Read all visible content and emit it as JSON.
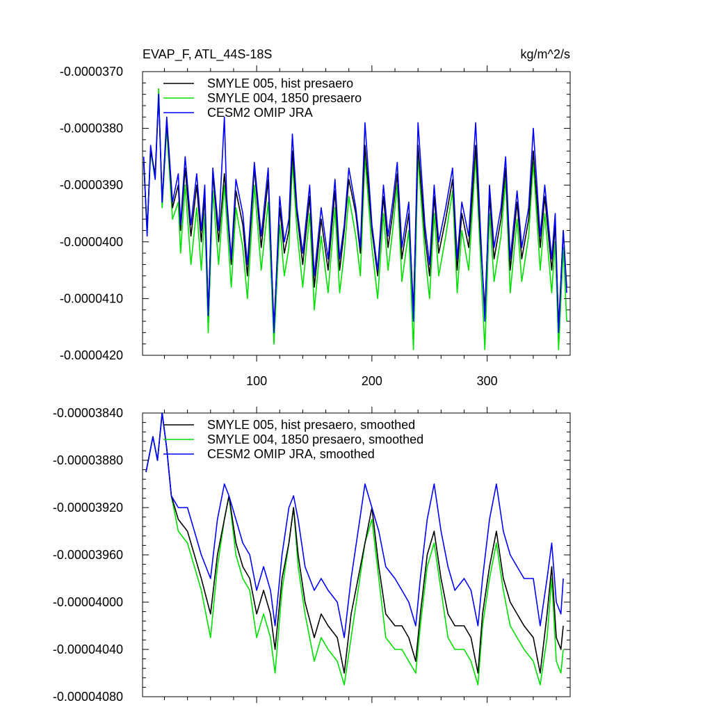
{
  "chart_data": [
    {
      "type": "line",
      "title": "EVAP_F, ATL_44S-18S",
      "units": "kg/m^2/s",
      "xlim": [
        1,
        372
      ],
      "ylim": [
        -4.2e-05,
        -3.7e-05
      ],
      "x_ticks": [
        100,
        200,
        300
      ],
      "x_tick_labels": [
        "100",
        "200",
        "300"
      ],
      "y_ticks": [
        -3.7e-05,
        -3.8e-05,
        -3.9e-05,
        -4e-05,
        -4.1e-05,
        -4.2e-05
      ],
      "y_tick_labels": [
        "-0.0000370",
        "-0.0000380",
        "-0.0000390",
        "-0.0000400",
        "-0.0000410",
        "-0.0000420"
      ],
      "legend_position": "top-left",
      "series": [
        {
          "name": "SMYLE 005, hist presaero",
          "color": "#000000",
          "x": [
            2,
            5,
            8,
            12,
            15,
            18,
            22,
            27,
            32,
            34,
            38,
            43,
            48,
            52,
            55,
            58,
            62,
            67,
            72,
            74,
            78,
            82,
            88,
            92,
            98,
            104,
            110,
            115,
            120,
            124,
            128,
            131,
            135,
            140,
            146,
            150,
            156,
            162,
            168,
            172,
            176,
            180,
            186,
            190,
            194,
            200,
            205,
            210,
            214,
            218,
            222,
            226,
            232,
            236,
            240,
            246,
            250,
            254,
            258,
            264,
            270,
            274,
            278,
            284,
            290,
            294,
            298,
            302,
            306,
            312,
            316,
            320,
            326,
            330,
            336,
            340,
            346,
            350,
            356,
            359,
            362,
            366,
            369
          ],
          "values": [
            -3.86e-05,
            -3.98e-05,
            -3.84e-05,
            -3.88e-05,
            -3.74e-05,
            -3.93e-05,
            -3.79e-05,
            -3.94e-05,
            -3.9e-05,
            -3.98e-05,
            -3.87e-05,
            -3.99e-05,
            -3.9e-05,
            -4e-05,
            -3.92e-05,
            -4.13e-05,
            -3.88e-05,
            -4e-05,
            -3.88e-05,
            -3.93e-05,
            -4.04e-05,
            -3.91e-05,
            -3.97e-05,
            -4.06e-05,
            -3.87e-05,
            -4.01e-05,
            -3.89e-05,
            -4.15e-05,
            -3.94e-05,
            -4.02e-05,
            -3.98e-05,
            -3.84e-05,
            -3.95e-05,
            -4.04e-05,
            -3.92e-05,
            -4.08e-05,
            -3.96e-05,
            -4.05e-05,
            -3.91e-05,
            -4.05e-05,
            -3.98e-05,
            -3.89e-05,
            -3.95e-05,
            -4.02e-05,
            -3.83e-05,
            -3.98e-05,
            -4.06e-05,
            -3.92e-05,
            -4.01e-05,
            -3.95e-05,
            -3.88e-05,
            -4.03e-05,
            -3.95e-05,
            -4.12e-05,
            -3.83e-05,
            -3.99e-05,
            -4.06e-05,
            -3.92e-05,
            -4.02e-05,
            -3.96e-05,
            -3.89e-05,
            -4.05e-05,
            -3.95e-05,
            -4.01e-05,
            -3.83e-05,
            -3.99e-05,
            -4.12e-05,
            -3.92e-05,
            -4.03e-05,
            -3.96e-05,
            -3.87e-05,
            -4.05e-05,
            -3.93e-05,
            -4.03e-05,
            -3.96e-05,
            -3.84e-05,
            -4.01e-05,
            -3.92e-05,
            -4.05e-05,
            -3.97e-05,
            -4.15e-05,
            -3.98e-05,
            -4.08e-05
          ]
        },
        {
          "name": "SMYLE 004, 1850 presaero",
          "color": "#00e000",
          "x": [
            2,
            5,
            8,
            12,
            15,
            18,
            22,
            27,
            32,
            34,
            38,
            43,
            48,
            52,
            55,
            58,
            62,
            67,
            72,
            74,
            78,
            82,
            88,
            92,
            98,
            104,
            110,
            115,
            120,
            124,
            128,
            131,
            135,
            140,
            146,
            150,
            156,
            162,
            168,
            172,
            176,
            180,
            186,
            190,
            194,
            200,
            205,
            210,
            214,
            218,
            222,
            226,
            232,
            236,
            240,
            246,
            250,
            254,
            258,
            264,
            270,
            274,
            278,
            284,
            290,
            294,
            298,
            302,
            306,
            312,
            316,
            320,
            326,
            330,
            336,
            340,
            346,
            350,
            356,
            359,
            362,
            366,
            369
          ],
          "values": [
            -3.86e-05,
            -3.98e-05,
            -3.84e-05,
            -3.89e-05,
            -3.73e-05,
            -3.94e-05,
            -3.8e-05,
            -3.96e-05,
            -3.93e-05,
            -4.02e-05,
            -3.9e-05,
            -4.04e-05,
            -3.94e-05,
            -4.05e-05,
            -3.95e-05,
            -4.16e-05,
            -3.91e-05,
            -4.04e-05,
            -3.9e-05,
            -3.96e-05,
            -4.08e-05,
            -3.94e-05,
            -4.01e-05,
            -4.1e-05,
            -3.9e-05,
            -4.05e-05,
            -3.93e-05,
            -4.18e-05,
            -3.97e-05,
            -4.06e-05,
            -4.01e-05,
            -3.86e-05,
            -3.98e-05,
            -4.08e-05,
            -3.95e-05,
            -4.12e-05,
            -3.99e-05,
            -4.09e-05,
            -3.94e-05,
            -4.09e-05,
            -4.02e-05,
            -3.92e-05,
            -3.99e-05,
            -4.06e-05,
            -3.85e-05,
            -4.01e-05,
            -4.1e-05,
            -3.95e-05,
            -4.05e-05,
            -3.98e-05,
            -3.9e-05,
            -4.07e-05,
            -3.98e-05,
            -4.19e-05,
            -3.85e-05,
            -4.02e-05,
            -4.1e-05,
            -3.95e-05,
            -4.06e-05,
            -3.99e-05,
            -3.91e-05,
            -4.09e-05,
            -3.98e-05,
            -4.05e-05,
            -3.85e-05,
            -4.02e-05,
            -4.19e-05,
            -3.95e-05,
            -4.07e-05,
            -3.99e-05,
            -3.89e-05,
            -4.09e-05,
            -3.96e-05,
            -4.07e-05,
            -3.99e-05,
            -3.86e-05,
            -4.05e-05,
            -3.95e-05,
            -4.09e-05,
            -4e-05,
            -4.19e-05,
            -4.01e-05,
            -4.14e-05
          ]
        },
        {
          "name": "CESM2 OMIP JRA",
          "color": "#0000ff",
          "x": [
            2,
            5,
            8,
            12,
            15,
            18,
            22,
            27,
            32,
            34,
            38,
            43,
            48,
            52,
            55,
            58,
            62,
            67,
            72,
            74,
            78,
            82,
            88,
            92,
            98,
            104,
            110,
            115,
            120,
            124,
            128,
            131,
            135,
            140,
            146,
            150,
            156,
            162,
            168,
            172,
            176,
            180,
            186,
            190,
            194,
            200,
            205,
            210,
            214,
            218,
            222,
            226,
            232,
            236,
            240,
            246,
            250,
            254,
            258,
            264,
            270,
            274,
            278,
            284,
            290,
            294,
            298,
            302,
            306,
            312,
            316,
            320,
            326,
            330,
            336,
            340,
            346,
            350,
            356,
            359,
            362,
            366,
            369
          ],
          "values": [
            -3.85e-05,
            -3.99e-05,
            -3.83e-05,
            -3.89e-05,
            -3.74e-05,
            -3.93e-05,
            -3.78e-05,
            -3.93e-05,
            -3.88e-05,
            -3.97e-05,
            -3.85e-05,
            -3.97e-05,
            -3.88e-05,
            -3.98e-05,
            -3.9e-05,
            -4.13e-05,
            -3.87e-05,
            -3.98e-05,
            -3.78e-05,
            -3.92e-05,
            -4.03e-05,
            -3.89e-05,
            -3.95e-05,
            -4.04e-05,
            -3.86e-05,
            -3.99e-05,
            -3.87e-05,
            -4.16e-05,
            -3.92e-05,
            -4e-05,
            -3.96e-05,
            -3.81e-05,
            -3.94e-05,
            -4.02e-05,
            -3.9e-05,
            -4.06e-05,
            -3.94e-05,
            -4.03e-05,
            -3.89e-05,
            -4.03e-05,
            -3.97e-05,
            -3.87e-05,
            -3.94e-05,
            -4.01e-05,
            -3.79e-05,
            -3.97e-05,
            -4.05e-05,
            -3.9e-05,
            -3.99e-05,
            -3.93e-05,
            -3.86e-05,
            -4.01e-05,
            -3.93e-05,
            -4.14e-05,
            -3.79e-05,
            -3.97e-05,
            -4.04e-05,
            -3.9e-05,
            -4e-05,
            -3.94e-05,
            -3.87e-05,
            -4.03e-05,
            -3.93e-05,
            -3.99e-05,
            -3.79e-05,
            -3.97e-05,
            -4.14e-05,
            -3.9e-05,
            -4.01e-05,
            -3.94e-05,
            -3.85e-05,
            -4.03e-05,
            -3.91e-05,
            -4.01e-05,
            -3.94e-05,
            -3.8e-05,
            -3.99e-05,
            -3.9e-05,
            -4.03e-05,
            -3.95e-05,
            -4.16e-05,
            -3.98e-05,
            -4.09e-05
          ]
        }
      ]
    },
    {
      "type": "line",
      "xlim": [
        1,
        372
      ],
      "ylim": [
        -4.08e-05,
        -3.84e-05
      ],
      "x_ticks": [
        100,
        200,
        300
      ],
      "x_tick_labels": [
        "",
        "",
        ""
      ],
      "y_ticks": [
        -3.84e-05,
        -3.88e-05,
        -3.92e-05,
        -3.96e-05,
        -4e-05,
        -4.04e-05,
        -4.08e-05
      ],
      "y_tick_labels": [
        "-0.00003840",
        "-0.00003880",
        "-0.00003920",
        "-0.00003960",
        "-0.00004000",
        "-0.00004040",
        "-0.00004080"
      ],
      "legend_position": "top-left",
      "series": [
        {
          "name": "SMYLE 005, hist presaero, smoothed",
          "color": "#000000",
          "x": [
            4,
            10,
            14,
            18,
            22,
            26,
            32,
            40,
            46,
            52,
            60,
            66,
            72,
            76,
            82,
            88,
            94,
            100,
            106,
            112,
            116,
            122,
            128,
            132,
            136,
            142,
            150,
            156,
            162,
            170,
            176,
            182,
            188,
            194,
            200,
            206,
            212,
            220,
            226,
            232,
            238,
            242,
            248,
            254,
            260,
            266,
            272,
            280,
            286,
            292,
            296,
            302,
            308,
            314,
            320,
            326,
            332,
            340,
            346,
            352,
            356,
            360,
            364,
            366
          ],
          "values": [
            -3.89e-05,
            -3.86e-05,
            -3.88e-05,
            -3.84e-05,
            -3.87e-05,
            -3.91e-05,
            -3.93e-05,
            -3.94e-05,
            -3.96e-05,
            -3.98e-05,
            -4.01e-05,
            -3.96e-05,
            -3.93e-05,
            -3.91e-05,
            -3.95e-05,
            -3.97e-05,
            -3.98e-05,
            -4.01e-05,
            -3.99e-05,
            -4.01e-05,
            -4.04e-05,
            -3.98e-05,
            -3.95e-05,
            -3.92e-05,
            -3.96e-05,
            -4e-05,
            -4.03e-05,
            -4.01e-05,
            -4.02e-05,
            -4.03e-05,
            -4.06e-05,
            -4.01e-05,
            -3.98e-05,
            -3.95e-05,
            -3.92e-05,
            -3.97e-05,
            -4.01e-05,
            -4.02e-05,
            -4.02e-05,
            -4.03e-05,
            -4.05e-05,
            -4.01e-05,
            -3.96e-05,
            -3.94e-05,
            -3.98e-05,
            -4.01e-05,
            -4.02e-05,
            -4.02e-05,
            -4.03e-05,
            -4.06e-05,
            -4.01e-05,
            -3.97e-05,
            -3.94e-05,
            -3.98e-05,
            -4e-05,
            -4.01e-05,
            -4.02e-05,
            -4.03e-05,
            -4.06e-05,
            -4.01e-05,
            -3.97e-05,
            -4.03e-05,
            -4.04e-05,
            -4.02e-05
          ]
        },
        {
          "name": "SMYLE 004, 1850 presaero, smoothed",
          "color": "#00e000",
          "x": [
            4,
            10,
            14,
            18,
            22,
            26,
            32,
            40,
            46,
            52,
            60,
            66,
            72,
            76,
            82,
            88,
            94,
            100,
            106,
            112,
            116,
            122,
            128,
            132,
            136,
            142,
            150,
            156,
            162,
            170,
            176,
            182,
            188,
            194,
            200,
            206,
            212,
            220,
            226,
            232,
            238,
            242,
            248,
            254,
            260,
            266,
            272,
            280,
            286,
            292,
            296,
            302,
            308,
            314,
            320,
            326,
            332,
            340,
            346,
            352,
            356,
            360,
            364,
            366
          ],
          "values": [
            -3.89e-05,
            -3.86e-05,
            -3.88e-05,
            -3.84e-05,
            -3.87e-05,
            -3.91e-05,
            -3.94e-05,
            -3.95e-05,
            -3.97e-05,
            -3.99e-05,
            -4.03e-05,
            -3.97e-05,
            -3.93e-05,
            -3.91e-05,
            -3.96e-05,
            -3.98e-05,
            -3.99e-05,
            -4.03e-05,
            -4.01e-05,
            -4.03e-05,
            -4.06e-05,
            -3.99e-05,
            -3.95e-05,
            -3.92e-05,
            -3.97e-05,
            -4.01e-05,
            -4.05e-05,
            -4.03e-05,
            -4.04e-05,
            -4.05e-05,
            -4.07e-05,
            -4.03e-05,
            -3.99e-05,
            -3.95e-05,
            -3.93e-05,
            -3.98e-05,
            -4.03e-05,
            -4.04e-05,
            -4.04e-05,
            -4.05e-05,
            -4.06e-05,
            -4.02e-05,
            -3.97e-05,
            -3.95e-05,
            -3.99e-05,
            -4.03e-05,
            -4.04e-05,
            -4.04e-05,
            -4.05e-05,
            -4.07e-05,
            -4.02e-05,
            -3.98e-05,
            -3.95e-05,
            -3.99e-05,
            -4.02e-05,
            -4.03e-05,
            -4.04e-05,
            -4.05e-05,
            -4.07e-05,
            -4.03e-05,
            -3.98e-05,
            -4.05e-05,
            -4.06e-05,
            -4.04e-05
          ]
        },
        {
          "name": "CESM2 OMIP JRA, smoothed",
          "color": "#0000ff",
          "x": [
            4,
            10,
            14,
            18,
            22,
            26,
            32,
            40,
            46,
            52,
            60,
            66,
            72,
            76,
            82,
            88,
            94,
            100,
            106,
            112,
            116,
            122,
            128,
            132,
            136,
            142,
            150,
            156,
            162,
            170,
            176,
            182,
            188,
            194,
            200,
            206,
            212,
            220,
            226,
            232,
            238,
            242,
            248,
            254,
            260,
            266,
            272,
            280,
            286,
            292,
            296,
            302,
            308,
            314,
            320,
            326,
            332,
            340,
            346,
            352,
            356,
            360,
            364,
            366
          ],
          "values": [
            -3.89e-05,
            -3.86e-05,
            -3.88e-05,
            -3.84e-05,
            -3.87e-05,
            -3.91e-05,
            -3.92e-05,
            -3.92e-05,
            -3.94e-05,
            -3.96e-05,
            -3.98e-05,
            -3.93e-05,
            -3.9e-05,
            -3.91e-05,
            -3.93e-05,
            -3.95e-05,
            -3.96e-05,
            -3.99e-05,
            -3.97e-05,
            -3.99e-05,
            -4.02e-05,
            -3.96e-05,
            -3.92e-05,
            -3.91e-05,
            -3.93e-05,
            -3.97e-05,
            -3.99e-05,
            -3.98e-05,
            -3.99e-05,
            -4e-05,
            -4.03e-05,
            -3.98e-05,
            -3.94e-05,
            -3.9e-05,
            -3.92e-05,
            -3.94e-05,
            -3.97e-05,
            -3.98e-05,
            -3.99e-05,
            -4e-05,
            -4.02e-05,
            -3.98e-05,
            -3.93e-05,
            -3.9e-05,
            -3.94e-05,
            -3.97e-05,
            -3.99e-05,
            -3.98e-05,
            -3.99e-05,
            -4.02e-05,
            -3.98e-05,
            -3.93e-05,
            -3.9e-05,
            -3.94e-05,
            -3.96e-05,
            -3.97e-05,
            -3.98e-05,
            -3.98e-05,
            -4.02e-05,
            -3.98e-05,
            -3.95e-05,
            -4e-05,
            -4.01e-05,
            -3.98e-05
          ]
        }
      ]
    }
  ]
}
